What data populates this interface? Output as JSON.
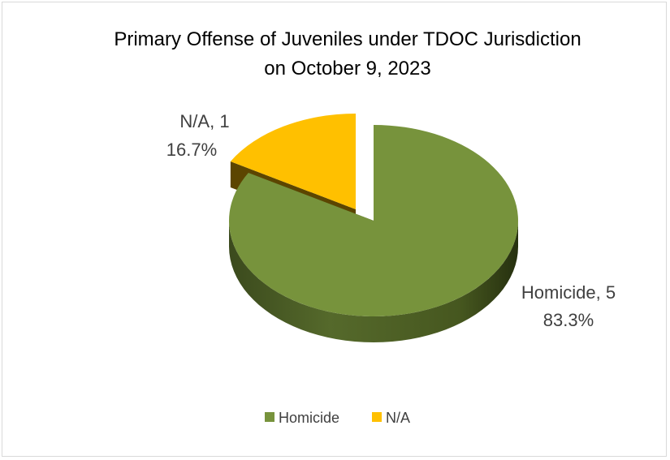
{
  "chart_data": {
    "type": "pie",
    "title_lines": [
      "Primary Offense of Juveniles under TDOC Jurisdiction",
      "on October 9, 2023"
    ],
    "three_d": true,
    "exploded": true,
    "slices": [
      {
        "name": "Homicide",
        "value": 5,
        "label_line1": "Homicide, 5",
        "label_line2": "83.3%",
        "color": "#77933C"
      },
      {
        "name": "N/A",
        "value": 1,
        "label_line1": "N/A, 1",
        "label_line2": "16.7%",
        "color": "#FFC000"
      }
    ],
    "legend": {
      "placement": "bottom",
      "items": [
        {
          "label": "Homicide",
          "color": "#77933C"
        },
        {
          "label": "N/A",
          "color": "#FFC000"
        }
      ]
    }
  }
}
